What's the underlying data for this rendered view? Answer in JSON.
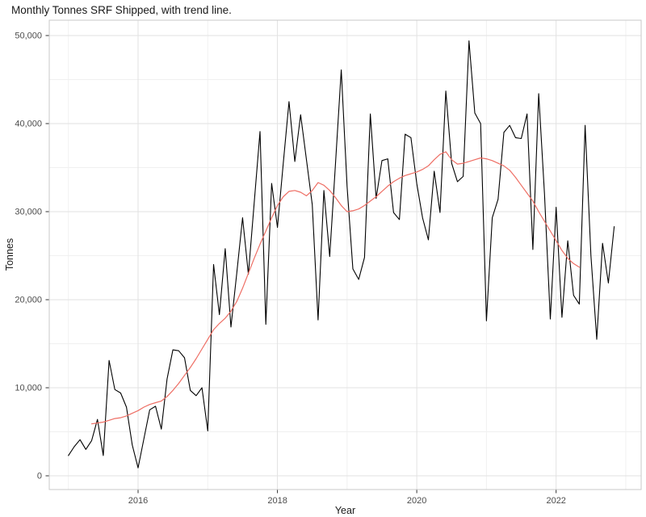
{
  "title": "Monthly Tonnes SRF Shipped, with trend line.",
  "colors": {
    "background": "#ffffff",
    "monthly_line": "#000000",
    "trend_line": "#ee6e64",
    "grid_major": "#e2e2e2",
    "grid_minor": "#f0f0f0",
    "panel_border": "#c9c9c9",
    "tick_mark": "#333333",
    "tick_label": "#4d4d4d",
    "axis_title": "#1a1a1a"
  },
  "chart_data": {
    "type": "line",
    "title": "Monthly Tonnes SRF Shipped, with trend line.",
    "xlabel": "Year",
    "ylabel": "Tonnes",
    "grid": true,
    "legend_position": "none",
    "x_start_month": "2015-01",
    "x_end_month": "2022-11",
    "x_tick_years": [
      2016,
      2018,
      2020,
      2022
    ],
    "x_tick_labels": [
      "2016",
      "2018",
      "2020",
      "2022"
    ],
    "x_minor_years": [
      2015,
      2017,
      2019,
      2021,
      2023
    ],
    "y_ticks": [
      0,
      10000,
      20000,
      30000,
      40000,
      50000
    ],
    "y_tick_labels": [
      "0",
      "10,000",
      "20,000",
      "30,000",
      "40,000",
      "50,000"
    ],
    "y_minor_ticks": [
      5000,
      15000,
      25000,
      35000,
      45000
    ],
    "ylim": [
      -1600,
      51800
    ],
    "series": [
      {
        "name": "monthly-tonnes",
        "color": "#000000",
        "start_month_index": 0,
        "values": [
          2300,
          3300,
          4100,
          3000,
          4000,
          6400,
          2300,
          13100,
          9800,
          9400,
          7800,
          3500,
          900,
          4200,
          7500,
          7900,
          5300,
          11000,
          14300,
          14200,
          13400,
          9700,
          9100,
          10000,
          5100,
          24000,
          18300,
          25800,
          16900,
          23000,
          29300,
          22900,
          31000,
          39100,
          17200,
          33200,
          28200,
          35500,
          42500,
          35700,
          41000,
          35900,
          30800,
          17700,
          32400,
          24900,
          35500,
          46100,
          32900,
          23500,
          22300,
          24800,
          41100,
          31500,
          35800,
          36000,
          29900,
          29100,
          38800,
          38400,
          33200,
          29300,
          26800,
          34600,
          29900,
          43700,
          35500,
          33400,
          34000,
          49400,
          41200,
          40000,
          17600,
          29300,
          31400,
          39000,
          39800,
          38400,
          38300,
          41100,
          25700,
          43400,
          32000,
          17800,
          30500,
          18000,
          26700,
          20500,
          19500,
          39800,
          25000,
          15500,
          26400,
          21900,
          28300
        ]
      },
      {
        "name": "trend-line",
        "color": "#ee6e64",
        "start_month_index": 4,
        "values": [
          5900,
          6000,
          6100,
          6300,
          6500,
          6600,
          6800,
          7100,
          7400,
          7800,
          8100,
          8300,
          8500,
          9000,
          9700,
          10500,
          11400,
          12300,
          13300,
          14400,
          15500,
          16600,
          17300,
          17900,
          18700,
          19800,
          21300,
          23000,
          24700,
          26300,
          27800,
          29300,
          30700,
          31700,
          32300,
          32400,
          32200,
          31800,
          32400,
          33300,
          33000,
          32400,
          31600,
          30700,
          30000,
          30100,
          30300,
          30700,
          31200,
          31700,
          32300,
          32900,
          33400,
          33800,
          34100,
          34300,
          34500,
          34800,
          35200,
          35900,
          36500,
          36800,
          35900,
          35400,
          35500,
          35700,
          35900,
          36100,
          36000,
          35800,
          35500,
          35200,
          34700,
          33900,
          33000,
          32100,
          31200,
          30000,
          28900,
          27800,
          26700,
          25600,
          24700,
          24100,
          23700
        ]
      }
    ]
  }
}
